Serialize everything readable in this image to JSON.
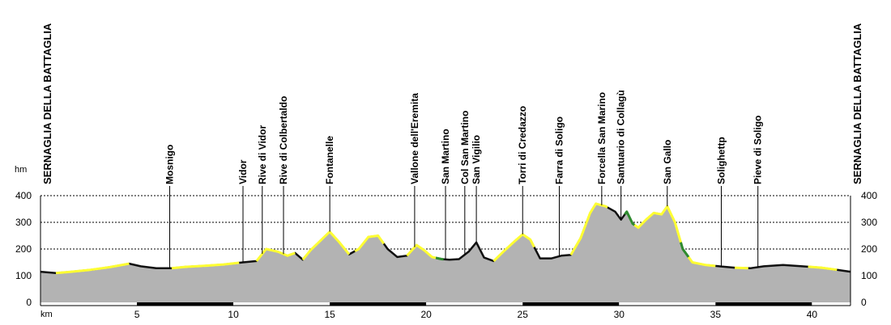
{
  "chart_data": {
    "type": "area",
    "title": "",
    "xlabel": "km",
    "ylabel": "hm",
    "xlim": [
      0,
      42
    ],
    "ylim": [
      0,
      400
    ],
    "grid": true,
    "x_ticks": [
      5,
      10,
      15,
      20,
      25,
      30,
      35,
      40
    ],
    "y_ticks": [
      0,
      100,
      200,
      300,
      400
    ],
    "start_label": "SERNAGLIA DELLA BATTAGLIA",
    "end_label": "SERNAGLIA DELLA BATTAGLIA",
    "colors": {
      "fill": "#b3b3b3",
      "track": "#111111",
      "moderate_grade": "#ffff33",
      "steep_grade": "#2e8b2e"
    },
    "profile": {
      "x": [
        0,
        0.8,
        1.6,
        2.6,
        3.6,
        4.6,
        5.2,
        6.0,
        6.8,
        7.5,
        8.5,
        9.5,
        10.5,
        11.2,
        11.7,
        12.3,
        12.8,
        13.2,
        13.6,
        14.0,
        14.5,
        15.0,
        15.5,
        16.0,
        16.5,
        17.0,
        17.5,
        18.0,
        18.5,
        19.0,
        19.5,
        19.9,
        20.3,
        20.8,
        21.2,
        21.7,
        22.2,
        22.6,
        23.0,
        23.5,
        24.0,
        24.6,
        25.0,
        25.4,
        25.9,
        26.5,
        27.0,
        27.5,
        28.0,
        28.5,
        28.8,
        29.3,
        29.8,
        30.1,
        30.4,
        30.7,
        31.0,
        31.4,
        31.8,
        32.2,
        32.5,
        32.9,
        33.3,
        33.8,
        34.5,
        35.2,
        36.0,
        36.8,
        37.5,
        38.5,
        39.5,
        40.5,
        41.3,
        42.0
      ],
      "elev": [
        115,
        110,
        115,
        122,
        132,
        145,
        135,
        128,
        128,
        133,
        137,
        142,
        150,
        155,
        200,
        190,
        175,
        185,
        160,
        195,
        230,
        265,
        225,
        180,
        200,
        245,
        250,
        200,
        170,
        175,
        215,
        195,
        170,
        162,
        160,
        162,
        190,
        225,
        168,
        155,
        190,
        230,
        255,
        235,
        165,
        165,
        175,
        178,
        240,
        335,
        370,
        360,
        340,
        310,
        340,
        295,
        280,
        310,
        335,
        330,
        360,
        300,
        200,
        150,
        140,
        135,
        130,
        128,
        135,
        140,
        135,
        130,
        122,
        115
      ]
    },
    "grade_segments": [
      {
        "grade": "moderate",
        "x": [
          0.8,
          4.6
        ]
      },
      {
        "grade": "moderate",
        "x": [
          6.8,
          10.3
        ]
      },
      {
        "grade": "moderate",
        "x": [
          11.2,
          13.2
        ]
      },
      {
        "grade": "moderate",
        "x": [
          13.6,
          16.0
        ]
      },
      {
        "grade": "moderate",
        "x": [
          16.3,
          17.8
        ]
      },
      {
        "grade": "moderate",
        "x": [
          19.0,
          20.5
        ]
      },
      {
        "grade": "steep",
        "x": [
          20.5,
          20.9
        ]
      },
      {
        "grade": "moderate",
        "x": [
          23.5,
          25.6
        ]
      },
      {
        "grade": "moderate",
        "x": [
          27.5,
          29.4
        ]
      },
      {
        "grade": "steep",
        "x": [
          30.3,
          30.8
        ]
      },
      {
        "grade": "moderate",
        "x": [
          30.8,
          33.2
        ]
      },
      {
        "grade": "steep",
        "x": [
          33.2,
          33.6
        ]
      },
      {
        "grade": "moderate",
        "x": [
          33.6,
          35.0
        ]
      },
      {
        "grade": "moderate",
        "x": [
          36.0,
          36.7
        ]
      },
      {
        "grade": "moderate",
        "x": [
          39.8,
          41.3
        ]
      }
    ],
    "waypoints": [
      {
        "name": "Mosnigo",
        "km": 6.7
      },
      {
        "name": "Vidor",
        "km": 10.5
      },
      {
        "name": "Rive di Vidor",
        "km": 11.5
      },
      {
        "name": "Rive di Colbertaldo",
        "km": 12.6
      },
      {
        "name": "Fontanelle",
        "km": 15.0
      },
      {
        "name": "Vallone dell'Eremita",
        "km": 19.4
      },
      {
        "name": "San Martino",
        "km": 21.0
      },
      {
        "name": "Col San Martino",
        "km": 22.0
      },
      {
        "name": "San Vigilio",
        "km": 22.6
      },
      {
        "name": "Torri di Credazzo",
        "km": 25.0
      },
      {
        "name": "Farra di Soligo",
        "km": 26.9
      },
      {
        "name": "Forcella San Marino",
        "km": 29.1
      },
      {
        "name": "Santuario di Collagù",
        "km": 30.1
      },
      {
        "name": "San Gallo",
        "km": 32.5
      },
      {
        "name": "Solighettp",
        "km": 35.3
      },
      {
        "name": "Pieve di Soligo",
        "km": 37.2
      }
    ]
  }
}
